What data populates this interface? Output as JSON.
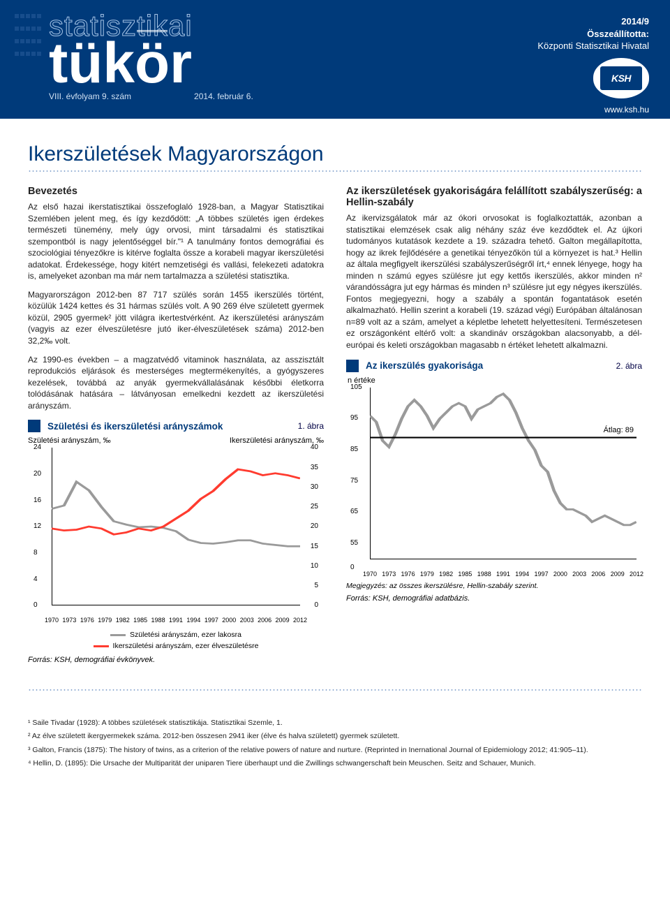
{
  "header": {
    "title_outline": "statisztikai",
    "title_bold_pre": "tük",
    "title_bold_o": "ö",
    "title_bold_post": "r",
    "subline_left": "VIII. évfolyam 9. szám",
    "subline_right": "2014. február 6.",
    "issue_year": "2014/9",
    "compiled_label": "Összeállította:",
    "compiled_by": "Központi Statisztikai Hivatal",
    "logo_text": "KSH",
    "url": "www.ksh.hu"
  },
  "main_title": "Ikerszületések Magyarországon",
  "left": {
    "h_intro": "Bevezetés",
    "p1": "Az első hazai ikerstatisztikai összefoglaló 1928-ban, a Magyar Statisztikai Szemlében jelent meg, és így kezdődött: „A többes születés igen érdekes természeti tünemény, mely úgy orvosi, mint társadalmi és statisztikai szempontból is nagy jelentőséggel bír.\"¹ A tanulmány fontos demográfiai és szociológiai tényezőkre is kitérve foglalta össze a korabeli magyar ikerszületési adatokat. Érdekessége, hogy kitért nemzetiségi és vallási, felekezeti adatokra is, amelyeket azonban ma már nem tartalmazza a születési statisztika.",
    "p2": "Magyarországon 2012-ben 87 717 szülés során 1455 ikerszülés történt, közülük 1424 kettes és 31 hármas szülés volt. A 90 269 élve született gyermek közül, 2905 gyermek² jött világra ikertestvérként. Az ikerszületési arányszám (vagyis az ezer élveszületésre jutó iker-élveszületések száma) 2012-ben 32,2‰ volt.",
    "p3": "Az 1990-es években – a magzatvédő vitaminok használata, az asszisztált reprodukciós eljárások és mesterséges megtermékenyítés, a gyógyszeres kezelések, továbbá az anyák gyermekvállalásának későbbi életkorra tolódásának hatására – látványosan emelkedni kezdett az ikerszületési arányszám.",
    "fig1_caption": "Születési és ikerszületési arányszámok",
    "fig1_num": "1. ábra",
    "fig1": {
      "type": "line-dual-axis",
      "y_left_label": "Születési arányszám, ‰",
      "y_right_label": "Ikerszületési arányszám, ‰",
      "y_left": {
        "min": 0,
        "max": 24,
        "step": 4,
        "ticks": [
          0,
          4,
          8,
          12,
          16,
          20,
          24
        ]
      },
      "y_right": {
        "min": 0,
        "max": 40,
        "step": 5,
        "ticks": [
          0,
          5,
          10,
          15,
          20,
          25,
          30,
          35,
          40
        ]
      },
      "x_years": [
        1970,
        1973,
        1976,
        1979,
        1982,
        1985,
        1988,
        1991,
        1994,
        1997,
        2000,
        2003,
        2006,
        2009,
        2012
      ],
      "series_birth": {
        "label": "Születési arányszám, ezer lakosra",
        "color": "#9a9a9a",
        "width": 2.5,
        "data": [
          14.7,
          15.2,
          18.8,
          17.5,
          15.0,
          12.8,
          12.3,
          11.9,
          12.0,
          11.8,
          11.3,
          10.0,
          9.5,
          9.4,
          9.6,
          9.9,
          9.9,
          9.4,
          9.2,
          9.0,
          9.0
        ]
      },
      "series_twin": {
        "label": "Ikerszületési arányszám, ezer élveszületésre",
        "color": "#ff3b2f",
        "width": 2.5,
        "data": [
          19.5,
          19.0,
          19.2,
          20.0,
          19.5,
          18.0,
          18.5,
          19.5,
          19.0,
          20.0,
          22.0,
          24.0,
          27.0,
          29.0,
          32.0,
          34.5,
          34.0,
          33.0,
          33.5,
          33.0,
          32.2
        ]
      },
      "source": "Forrás: KSH, demográfiai évkönyvek."
    }
  },
  "right": {
    "h_rule": "Az ikerszületések gyakoriságára felállított szabályszerűség: a Hellin-szabály",
    "p1": "Az ikervizsgálatok már az ókori orvosokat is foglalkoztatták, azonban a statisztikai elemzések csak alig néhány száz éve kezdődtek el. Az újkori tudományos kutatások kezdete a 19. századra tehető. Galton megállapította, hogy az ikrek fejlődésére a genetikai tényezőkön túl a környezet is hat.³ Hellin az általa megfigyelt ikerszülési szabályszerűségről írt,⁴ ennek lényege, hogy ha minden n számú egyes szülésre jut egy kettős ikerszülés, akkor minden n² várandósságra jut egy hármas és minden n³ szülésre jut egy négyes ikerszülés. Fontos megjegyezni, hogy a szabály a spontán fogantatások esetén alkalmazható. Hellin szerint a korabeli (19. század végi) Európában általánosan n=89 volt az a szám, amelyet a képletbe lehetett helyettesíteni. Természetesen ez országonként eltérő volt: a skandináv országokban alacsonyabb, a dél-európai és keleti országokban magasabb n értéket lehetett alkalmazni.",
    "fig2_caption": "Az ikerszülés gyakorisága",
    "fig2_num": "2. ábra",
    "fig2": {
      "type": "line",
      "y_label": "n értéke",
      "y": {
        "min": 0,
        "max": 105,
        "ticks": [
          0,
          55,
          65,
          75,
          85,
          95,
          105
        ]
      },
      "x_years": [
        1970,
        1973,
        1976,
        1979,
        1982,
        1985,
        1988,
        1991,
        1994,
        1997,
        2000,
        2003,
        2006,
        2009,
        2012
      ],
      "avg_line": {
        "value": 89,
        "label": "Átlag: 89",
        "color": "#000000"
      },
      "series": {
        "color": "#9a9a9a",
        "width": 2.5,
        "data": [
          96,
          94,
          88,
          86,
          90,
          95,
          99,
          101,
          99,
          96,
          92,
          95,
          97,
          99,
          100,
          99,
          95,
          98,
          99,
          100,
          102,
          103,
          101,
          97,
          92,
          88,
          85,
          80,
          78,
          72,
          68,
          66,
          66,
          65,
          64,
          62,
          63,
          64,
          63,
          62,
          61,
          61,
          62
        ]
      },
      "note": "Megjegyzés: az összes ikerszülésre, Hellin-szabály szerint.",
      "source": "Forrás: KSH, demográfiai adatbázis."
    }
  },
  "footnotes": {
    "fn1": "¹ Saile Tivadar (1928): A többes születések statisztikája. Statisztikai Szemle, 1.",
    "fn2": "² Az élve született ikergyermekek száma. 2012-ben összesen 2941 iker (élve és halva született) gyermek született.",
    "fn3": "³ Galton, Francis (1875):  The history of twins, as a criterion of the relative powers of nature and nurture. (Reprinted in Inernational Journal of Epidemiology 2012; 41:905–11).",
    "fn4": "⁴ Hellin, D. (1895): Die Ursache der Multiparität der uniparen Tiere überhaupt und die Zwillings schwangerschaft bein Meuschen. Seitz and Schauer, Munich."
  },
  "colors": {
    "header_bg": "#003a7a",
    "accent": "#003a7a",
    "red": "#ff3b2f",
    "gray": "#9a9a9a",
    "text": "#222222",
    "page_bg": "#ffffff"
  }
}
